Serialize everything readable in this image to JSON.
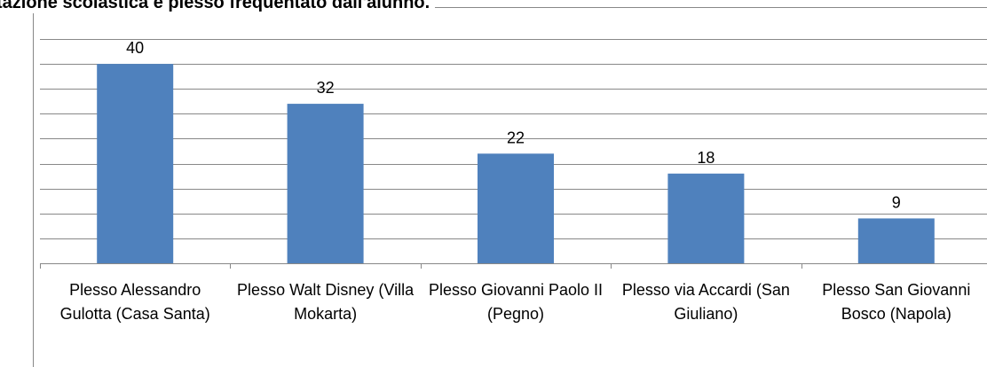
{
  "chart_data": {
    "type": "bar",
    "title": "tazione scolastica e plesso frequentato dall'alunno.",
    "categories": [
      "Plesso Alessandro Gulotta (Casa Santa)",
      "Plesso Walt Disney (Villa Mokarta)",
      "Plesso Giovanni Paolo II (Pegno)",
      "Plesso via Accardi (San Giuliano)",
      "Plesso San Giovanni Bosco (Napola)"
    ],
    "values": [
      40,
      32,
      22,
      18,
      9
    ],
    "color": "#4f81bd",
    "ylim": [
      0,
      45
    ],
    "yticks": [
      0,
      5,
      10,
      15,
      20,
      25,
      30,
      35,
      40,
      45
    ],
    "grid": true
  }
}
